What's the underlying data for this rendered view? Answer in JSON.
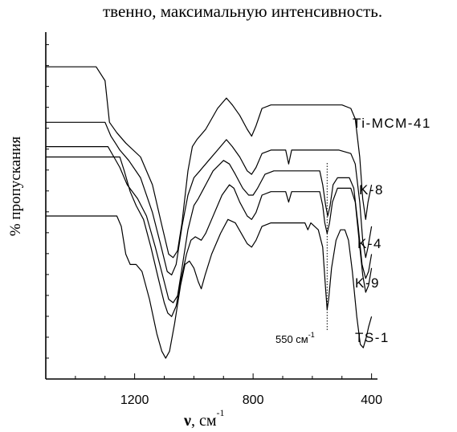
{
  "caption": "твенно, максимальную интенсивность.",
  "chart_data": {
    "type": "line",
    "title": "",
    "xlabel_symbol": "ν",
    "xlabel_unit": ", см",
    "xlabel_exp": "-1",
    "ylabel": "% пропускания",
    "xlim": [
      1500,
      380
    ],
    "x_reversed": true,
    "x_ticks": [
      1200,
      800,
      400
    ],
    "grid": false,
    "series": [
      {
        "name": "Ti-MCM-41",
        "points": [
          [
            1500,
            0.9
          ],
          [
            1330,
            0.9
          ],
          [
            1300,
            0.86
          ],
          [
            1285,
            0.74
          ],
          [
            1260,
            0.71
          ],
          [
            1230,
            0.68
          ],
          [
            1180,
            0.64
          ],
          [
            1140,
            0.56
          ],
          [
            1110,
            0.45
          ],
          [
            1085,
            0.36
          ],
          [
            1070,
            0.35
          ],
          [
            1055,
            0.37
          ],
          [
            1040,
            0.45
          ],
          [
            1020,
            0.6
          ],
          [
            1005,
            0.67
          ],
          [
            990,
            0.69
          ],
          [
            960,
            0.72
          ],
          [
            920,
            0.78
          ],
          [
            890,
            0.81
          ],
          [
            870,
            0.79
          ],
          [
            845,
            0.76
          ],
          [
            820,
            0.72
          ],
          [
            805,
            0.7
          ],
          [
            790,
            0.73
          ],
          [
            770,
            0.78
          ],
          [
            740,
            0.79
          ],
          [
            700,
            0.79
          ],
          [
            660,
            0.79
          ],
          [
            600,
            0.79
          ],
          [
            540,
            0.79
          ],
          [
            500,
            0.79
          ],
          [
            470,
            0.78
          ],
          [
            455,
            0.75
          ],
          [
            440,
            0.64
          ],
          [
            430,
            0.52
          ],
          [
            420,
            0.46
          ],
          [
            412,
            0.51
          ],
          [
            400,
            0.56
          ]
        ]
      },
      {
        "name": "K-8",
        "points": [
          [
            1500,
            0.74
          ],
          [
            1300,
            0.74
          ],
          [
            1280,
            0.7
          ],
          [
            1265,
            0.68
          ],
          [
            1250,
            0.66
          ],
          [
            1220,
            0.63
          ],
          [
            1180,
            0.58
          ],
          [
            1140,
            0.48
          ],
          [
            1110,
            0.38
          ],
          [
            1090,
            0.31
          ],
          [
            1075,
            0.3
          ],
          [
            1060,
            0.33
          ],
          [
            1040,
            0.44
          ],
          [
            1020,
            0.53
          ],
          [
            1000,
            0.58
          ],
          [
            980,
            0.6
          ],
          [
            950,
            0.63
          ],
          [
            920,
            0.66
          ],
          [
            890,
            0.69
          ],
          [
            870,
            0.67
          ],
          [
            845,
            0.64
          ],
          [
            820,
            0.6
          ],
          [
            805,
            0.59
          ],
          [
            790,
            0.61
          ],
          [
            770,
            0.65
          ],
          [
            740,
            0.66
          ],
          [
            690,
            0.66
          ],
          [
            680,
            0.62
          ],
          [
            670,
            0.66
          ],
          [
            640,
            0.66
          ],
          [
            560,
            0.66
          ],
          [
            510,
            0.66
          ],
          [
            470,
            0.65
          ],
          [
            455,
            0.62
          ],
          [
            440,
            0.51
          ],
          [
            430,
            0.4
          ],
          [
            420,
            0.35
          ],
          [
            412,
            0.38
          ],
          [
            400,
            0.44
          ]
        ]
      },
      {
        "name": "K-4",
        "points": [
          [
            1500,
            0.67
          ],
          [
            1290,
            0.67
          ],
          [
            1270,
            0.64
          ],
          [
            1250,
            0.61
          ],
          [
            1225,
            0.56
          ],
          [
            1190,
            0.52
          ],
          [
            1160,
            0.47
          ],
          [
            1130,
            0.38
          ],
          [
            1100,
            0.28
          ],
          [
            1085,
            0.23
          ],
          [
            1070,
            0.22
          ],
          [
            1055,
            0.24
          ],
          [
            1040,
            0.32
          ],
          [
            1020,
            0.43
          ],
          [
            1000,
            0.5
          ],
          [
            985,
            0.52
          ],
          [
            960,
            0.56
          ],
          [
            935,
            0.6
          ],
          [
            900,
            0.63
          ],
          [
            880,
            0.62
          ],
          [
            860,
            0.59
          ],
          [
            835,
            0.55
          ],
          [
            815,
            0.53
          ],
          [
            800,
            0.53
          ],
          [
            785,
            0.55
          ],
          [
            760,
            0.59
          ],
          [
            730,
            0.6
          ],
          [
            680,
            0.6
          ],
          [
            640,
            0.6
          ],
          [
            600,
            0.6
          ],
          [
            575,
            0.6
          ],
          [
            565,
            0.56
          ],
          [
            555,
            0.5
          ],
          [
            548,
            0.47
          ],
          [
            540,
            0.5
          ],
          [
            530,
            0.56
          ],
          [
            515,
            0.58
          ],
          [
            495,
            0.58
          ],
          [
            475,
            0.58
          ],
          [
            460,
            0.55
          ],
          [
            445,
            0.44
          ],
          [
            432,
            0.33
          ],
          [
            420,
            0.29
          ],
          [
            410,
            0.31
          ],
          [
            400,
            0.36
          ]
        ]
      },
      {
        "name": "K-9",
        "points": [
          [
            1500,
            0.64
          ],
          [
            1250,
            0.64
          ],
          [
            1235,
            0.6
          ],
          [
            1215,
            0.54
          ],
          [
            1195,
            0.5
          ],
          [
            1170,
            0.46
          ],
          [
            1145,
            0.38
          ],
          [
            1120,
            0.29
          ],
          [
            1100,
            0.22
          ],
          [
            1088,
            0.19
          ],
          [
            1075,
            0.18
          ],
          [
            1060,
            0.21
          ],
          [
            1045,
            0.28
          ],
          [
            1025,
            0.36
          ],
          [
            1010,
            0.4
          ],
          [
            995,
            0.41
          ],
          [
            975,
            0.4
          ],
          [
            960,
            0.42
          ],
          [
            940,
            0.46
          ],
          [
            905,
            0.53
          ],
          [
            880,
            0.56
          ],
          [
            865,
            0.55
          ],
          [
            845,
            0.51
          ],
          [
            820,
            0.47
          ],
          [
            805,
            0.46
          ],
          [
            790,
            0.48
          ],
          [
            770,
            0.53
          ],
          [
            740,
            0.54
          ],
          [
            690,
            0.54
          ],
          [
            680,
            0.51
          ],
          [
            670,
            0.54
          ],
          [
            640,
            0.54
          ],
          [
            595,
            0.54
          ],
          [
            575,
            0.54
          ],
          [
            565,
            0.5
          ],
          [
            558,
            0.45
          ],
          [
            550,
            0.42
          ],
          [
            542,
            0.45
          ],
          [
            532,
            0.51
          ],
          [
            515,
            0.55
          ],
          [
            495,
            0.55
          ],
          [
            470,
            0.55
          ],
          [
            455,
            0.51
          ],
          [
            442,
            0.4
          ],
          [
            430,
            0.3
          ],
          [
            420,
            0.25
          ],
          [
            410,
            0.27
          ],
          [
            400,
            0.32
          ]
        ]
      },
      {
        "name": "TS-1",
        "points": [
          [
            1500,
            0.47
          ],
          [
            1260,
            0.47
          ],
          [
            1245,
            0.44
          ],
          [
            1230,
            0.36
          ],
          [
            1215,
            0.33
          ],
          [
            1195,
            0.33
          ],
          [
            1175,
            0.31
          ],
          [
            1150,
            0.23
          ],
          [
            1125,
            0.13
          ],
          [
            1108,
            0.08
          ],
          [
            1095,
            0.06
          ],
          [
            1082,
            0.08
          ],
          [
            1065,
            0.16
          ],
          [
            1045,
            0.27
          ],
          [
            1030,
            0.33
          ],
          [
            1015,
            0.34
          ],
          [
            1000,
            0.32
          ],
          [
            985,
            0.28
          ],
          [
            975,
            0.26
          ],
          [
            962,
            0.3
          ],
          [
            940,
            0.36
          ],
          [
            910,
            0.42
          ],
          [
            885,
            0.46
          ],
          [
            860,
            0.45
          ],
          [
            840,
            0.42
          ],
          [
            820,
            0.39
          ],
          [
            805,
            0.38
          ],
          [
            790,
            0.4
          ],
          [
            770,
            0.44
          ],
          [
            740,
            0.45
          ],
          [
            700,
            0.45
          ],
          [
            660,
            0.45
          ],
          [
            625,
            0.45
          ],
          [
            615,
            0.43
          ],
          [
            605,
            0.45
          ],
          [
            580,
            0.43
          ],
          [
            565,
            0.38
          ],
          [
            556,
            0.27
          ],
          [
            550,
            0.2
          ],
          [
            545,
            0.23
          ],
          [
            535,
            0.32
          ],
          [
            520,
            0.4
          ],
          [
            505,
            0.43
          ],
          [
            490,
            0.43
          ],
          [
            478,
            0.4
          ],
          [
            465,
            0.31
          ],
          [
            450,
            0.18
          ],
          [
            438,
            0.1
          ],
          [
            428,
            0.09
          ],
          [
            418,
            0.12
          ],
          [
            410,
            0.15
          ],
          [
            400,
            0.18
          ]
        ]
      }
    ],
    "annotation": {
      "text": "550 см",
      "exp": "-1",
      "x": 550
    }
  }
}
